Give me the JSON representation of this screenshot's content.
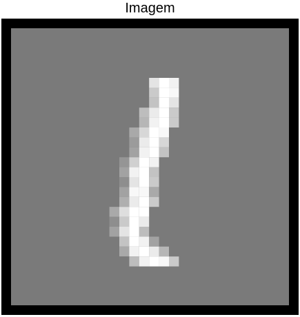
{
  "figure": {
    "title": "Imagem"
  },
  "image": {
    "background_color": "#7a7a7a",
    "border_color": "#000000",
    "grid_size": 28,
    "description_hidden": "",
    "pixels": [
      [
        9,
        19,
        0.8
      ],
      [
        10,
        19,
        1.0
      ],
      [
        11,
        19,
        0.9
      ],
      [
        9,
        18,
        0.6
      ],
      [
        10,
        18,
        1.0
      ],
      [
        11,
        18,
        0.95
      ],
      [
        9,
        17,
        0.55
      ],
      [
        10,
        17,
        1.0
      ],
      [
        11,
        17,
        0.8
      ],
      [
        8,
        16,
        0.5
      ],
      [
        9,
        16,
        0.85
      ],
      [
        10,
        16,
        1.0
      ],
      [
        11,
        16,
        0.6
      ],
      [
        8,
        15,
        0.45
      ],
      [
        9,
        15,
        0.9
      ],
      [
        10,
        15,
        1.0
      ],
      [
        11,
        15,
        0.6
      ],
      [
        7,
        14,
        0.35
      ],
      [
        8,
        14,
        0.7
      ],
      [
        9,
        14,
        1.0
      ],
      [
        10,
        14,
        0.95
      ],
      [
        7,
        13,
        0.25
      ],
      [
        8,
        13,
        0.85
      ],
      [
        9,
        13,
        1.0
      ],
      [
        10,
        13,
        0.7
      ],
      [
        7,
        12,
        0.3
      ],
      [
        8,
        12,
        0.9
      ],
      [
        9,
        12,
        1.0
      ],
      [
        10,
        12,
        0.55
      ],
      [
        6,
        11,
        0.2
      ],
      [
        7,
        11,
        0.65
      ],
      [
        8,
        11,
        1.0
      ],
      [
        9,
        11,
        0.9
      ],
      [
        6,
        10,
        0.3
      ],
      [
        7,
        10,
        0.9
      ],
      [
        8,
        10,
        1.0
      ],
      [
        9,
        10,
        0.55
      ],
      [
        6,
        9,
        0.15
      ],
      [
        7,
        9,
        0.8
      ],
      [
        8,
        9,
        1.0
      ],
      [
        9,
        9,
        0.6
      ],
      [
        6,
        8,
        0.3
      ],
      [
        7,
        8,
        0.95
      ],
      [
        8,
        8,
        0.95
      ],
      [
        9,
        8,
        0.35
      ],
      [
        6,
        7,
        0.4
      ],
      [
        7,
        7,
        0.85
      ],
      [
        8,
        7,
        1.0
      ],
      [
        9,
        7,
        0.6
      ],
      [
        5,
        6,
        0.35
      ],
      [
        6,
        6,
        0.75
      ],
      [
        7,
        6,
        1.0
      ],
      [
        8,
        6,
        1.0
      ],
      [
        5,
        5,
        0.15
      ],
      [
        6,
        5,
        0.6
      ],
      [
        7,
        5,
        1.0
      ],
      [
        8,
        5,
        0.85
      ],
      [
        5,
        4,
        0.3
      ],
      [
        6,
        4,
        0.8
      ],
      [
        7,
        4,
        1.0
      ],
      [
        8,
        4,
        0.5
      ],
      [
        6,
        3,
        0.55
      ],
      [
        7,
        3,
        1.0
      ],
      [
        8,
        3,
        0.9
      ],
      [
        9,
        3,
        0.3
      ],
      [
        6,
        2,
        0.35
      ],
      [
        7,
        2,
        0.9
      ],
      [
        8,
        2,
        1.0
      ],
      [
        9,
        2,
        0.85
      ],
      [
        10,
        2,
        0.45
      ],
      [
        6,
        1,
        0.0
      ],
      [
        7,
        1,
        0.5
      ],
      [
        8,
        1,
        0.9
      ],
      [
        9,
        1,
        1.0
      ],
      [
        10,
        1,
        0.95
      ],
      [
        11,
        1,
        0.6
      ]
    ]
  }
}
